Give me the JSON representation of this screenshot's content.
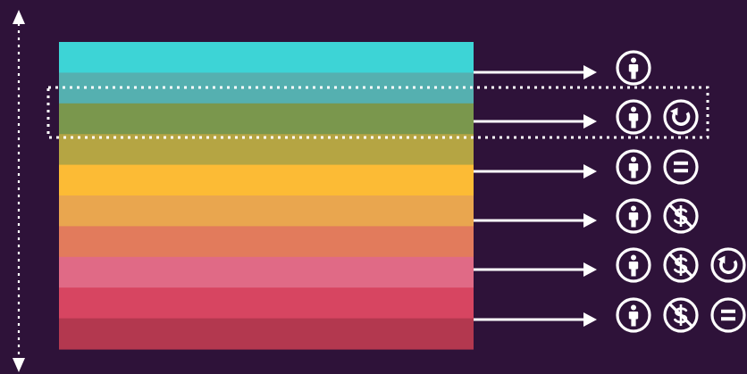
{
  "colors": {
    "background": "#2e1239",
    "foreground": "#ffffff"
  },
  "stripes": [
    "#3dd4d6",
    "#55b0b0",
    "#7a974d",
    "#b5a543",
    "#fcbb35",
    "#e9a64f",
    "#e27b5c",
    "#e06a86",
    "#d74561",
    "#b3384f"
  ],
  "license_rows": [
    {
      "icons": [
        "attribution-icon"
      ]
    },
    {
      "icons": [
        "attribution-icon",
        "share-alike-icon"
      ],
      "highlighted": true
    },
    {
      "icons": [
        "attribution-icon",
        "no-derivatives-icon"
      ]
    },
    {
      "icons": [
        "attribution-icon",
        "non-commercial-icon"
      ]
    },
    {
      "icons": [
        "attribution-icon",
        "non-commercial-icon",
        "share-alike-icon"
      ]
    },
    {
      "icons": [
        "attribution-icon",
        "non-commercial-icon",
        "no-derivatives-icon"
      ]
    }
  ]
}
